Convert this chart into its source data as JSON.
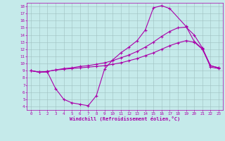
{
  "xlabel": "Windchill (Refroidissement éolien,°C)",
  "bg_color": "#c5eaea",
  "grid_color": "#9fc0c0",
  "line_color": "#aa00aa",
  "xlim": [
    -0.5,
    23.5
  ],
  "ylim": [
    3.5,
    18.5
  ],
  "xticks": [
    0,
    1,
    2,
    3,
    4,
    5,
    6,
    7,
    8,
    9,
    10,
    11,
    12,
    13,
    14,
    15,
    16,
    17,
    18,
    19,
    20,
    21,
    22,
    23
  ],
  "yticks": [
    4,
    5,
    6,
    7,
    8,
    9,
    10,
    11,
    12,
    13,
    14,
    15,
    16,
    17,
    18
  ],
  "curve1_x": [
    0,
    1,
    2,
    3,
    4,
    5,
    6,
    7,
    8,
    9,
    10,
    11,
    12,
    13,
    14,
    15,
    16,
    17,
    19,
    20,
    21,
    22,
    23
  ],
  "curve1_y": [
    9.0,
    8.8,
    8.8,
    6.5,
    5.0,
    4.5,
    4.3,
    4.1,
    5.5,
    9.2,
    10.5,
    11.5,
    12.3,
    13.2,
    14.7,
    17.8,
    18.1,
    17.7,
    15.2,
    13.1,
    12.1,
    9.5,
    9.3
  ],
  "curve2_x": [
    0,
    1,
    2,
    3,
    4,
    5,
    6,
    7,
    8,
    9,
    10,
    11,
    12,
    13,
    14,
    15,
    16,
    17,
    18,
    19,
    20,
    21,
    22,
    23
  ],
  "curve2_y": [
    9.0,
    8.8,
    8.9,
    9.1,
    9.2,
    9.3,
    9.4,
    9.5,
    9.6,
    9.7,
    9.9,
    10.1,
    10.4,
    10.7,
    11.1,
    11.5,
    12.0,
    12.5,
    12.9,
    13.2,
    13.0,
    12.0,
    9.7,
    9.4
  ],
  "curve3_x": [
    0,
    1,
    2,
    3,
    4,
    5,
    6,
    7,
    8,
    9,
    10,
    11,
    12,
    13,
    14,
    15,
    16,
    17,
    18,
    19,
    20,
    21,
    22,
    23
  ],
  "curve3_y": [
    9.0,
    8.8,
    8.9,
    9.1,
    9.3,
    9.4,
    9.6,
    9.7,
    9.9,
    10.1,
    10.4,
    10.8,
    11.2,
    11.7,
    12.3,
    13.0,
    13.8,
    14.5,
    15.0,
    15.1,
    14.0,
    12.2,
    9.7,
    9.4
  ]
}
